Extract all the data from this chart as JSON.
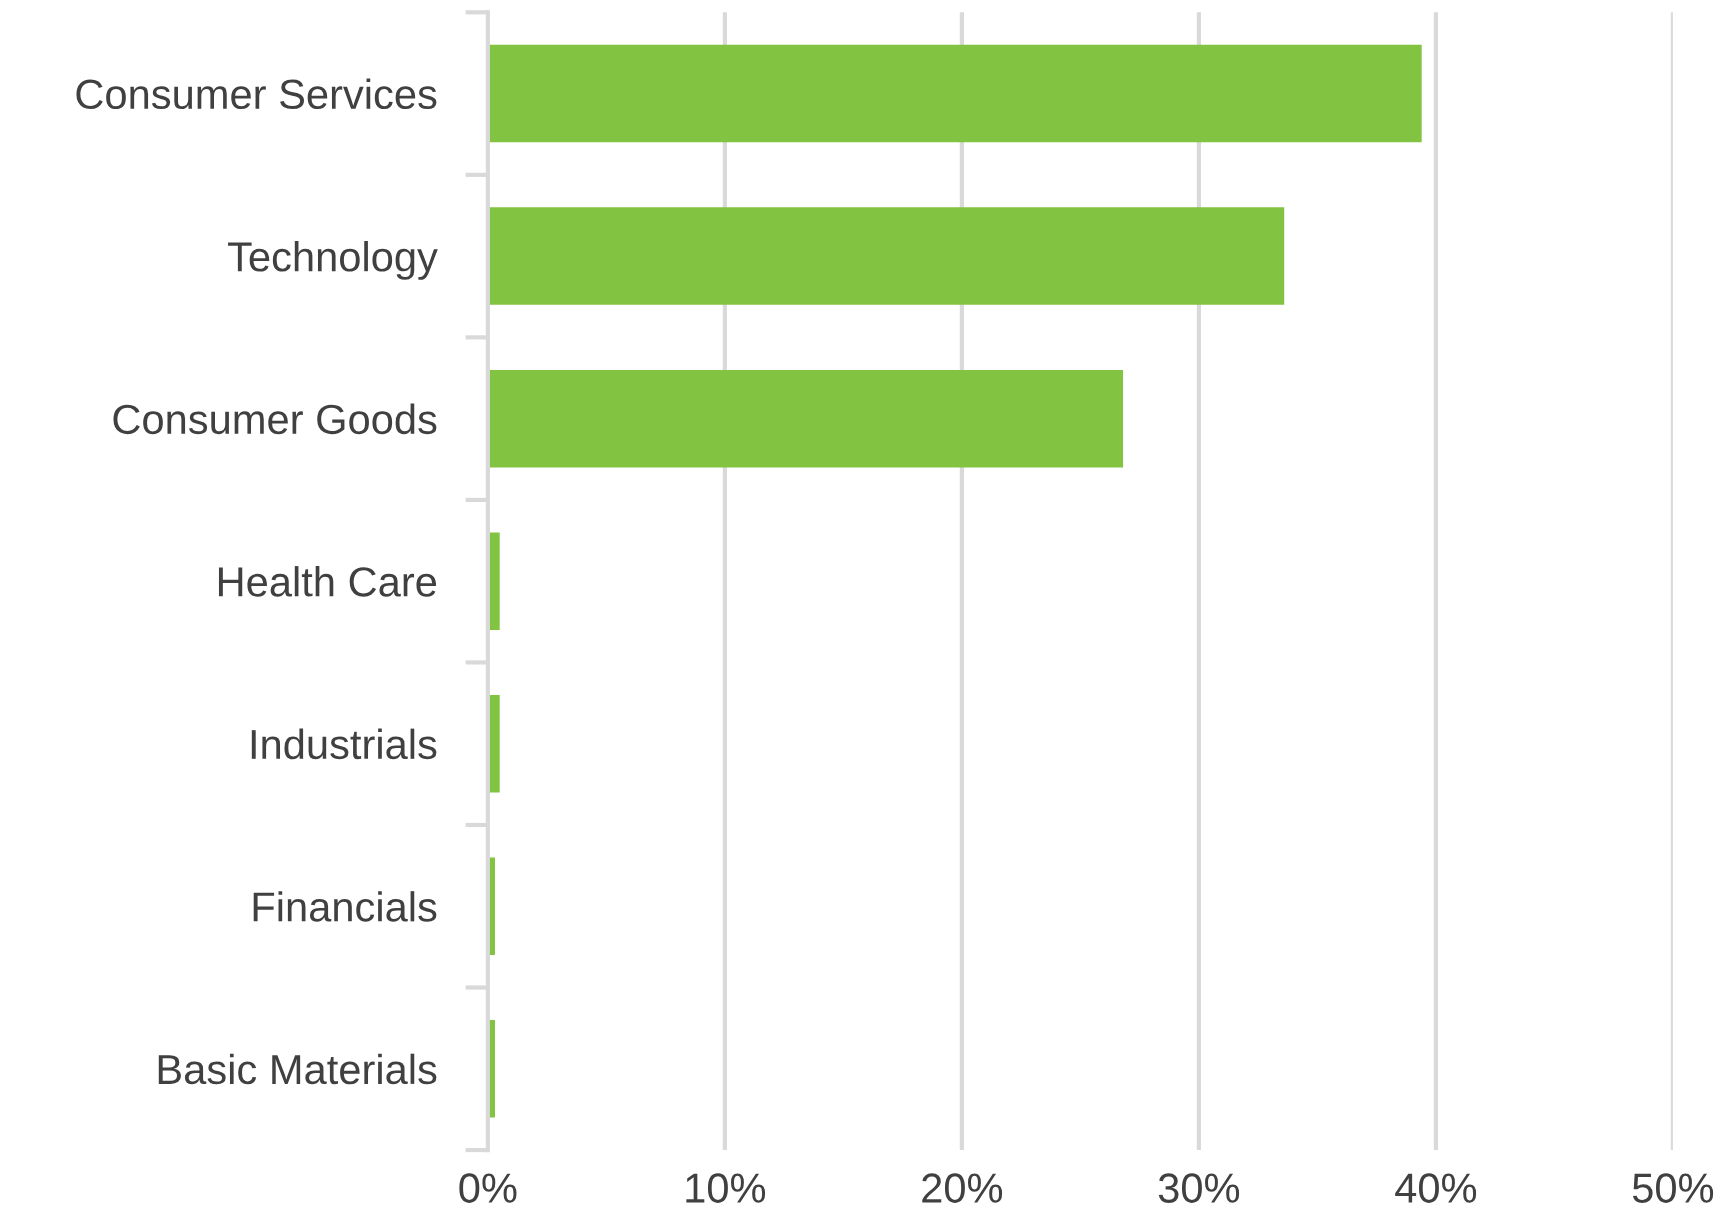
{
  "chart_data": {
    "type": "bar",
    "orientation": "horizontal",
    "categories": [
      "Consumer Services",
      "Technology",
      "Consumer Goods",
      "Health Care",
      "Industrials",
      "Financials",
      "Basic Materials"
    ],
    "values": [
      39.4,
      33.6,
      26.8,
      0.5,
      0.5,
      0.3,
      0.3
    ],
    "color": "#82c341",
    "xlim": [
      0,
      50
    ],
    "xticks": [
      {
        "value": 0,
        "label": "0%"
      },
      {
        "value": 10,
        "label": "10%"
      },
      {
        "value": 20,
        "label": "20%"
      },
      {
        "value": 30,
        "label": "30%"
      },
      {
        "value": 40,
        "label": "40%"
      },
      {
        "value": 50,
        "label": "50%"
      }
    ],
    "grid": "x",
    "legend": false
  }
}
